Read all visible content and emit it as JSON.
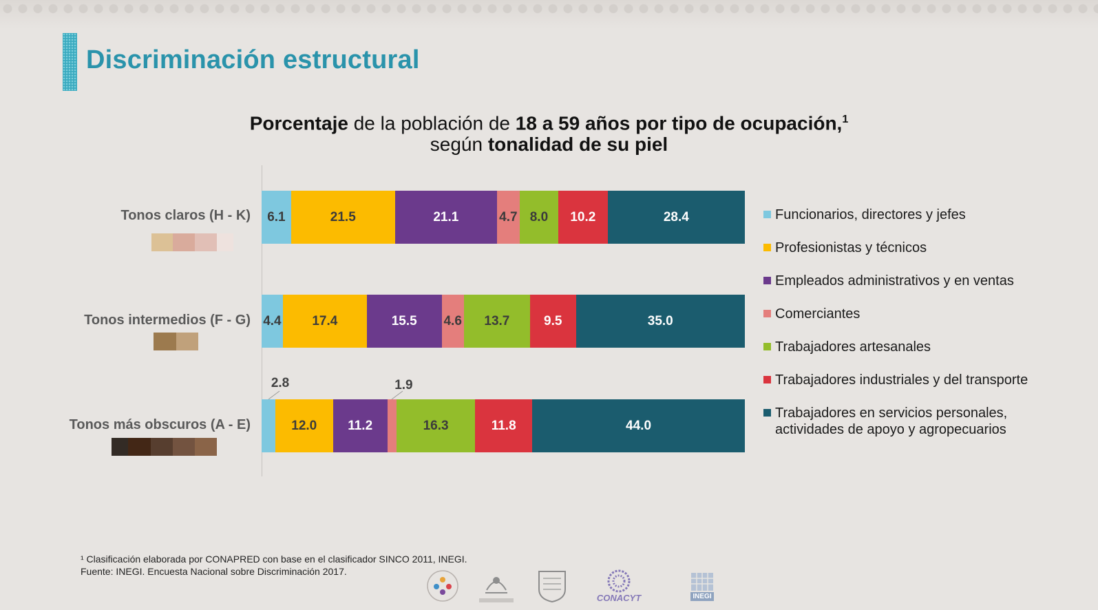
{
  "title": "Discriminación estructural",
  "subtitle": {
    "line1": [
      {
        "text": "Porcentaje",
        "bold": true
      },
      {
        "text": " de la población de ",
        "bold": false
      },
      {
        "text": "18 a 59 años por tipo de ocupación,",
        "bold": true
      }
    ],
    "line1_sup": "1",
    "line2": [
      {
        "text": "según ",
        "bold": false
      },
      {
        "text": "tonalidad de su piel",
        "bold": true
      }
    ]
  },
  "colors": {
    "funcionarios": "#7ec8df",
    "profesionistas": "#fcbb00",
    "empleados": "#6b3a8c",
    "comerciantes": "#e47e7c",
    "artesanales": "#93bd2b",
    "industriales": "#da343e",
    "servicios": "#1b5c6e"
  },
  "chart_data": {
    "type": "bar",
    "orientation": "horizontal",
    "stacked": true,
    "title": "Porcentaje de la población de 18 a 59 años por tipo de ocupación, según tonalidad de su piel",
    "categories": [
      "Tonos claros (H - K)",
      "Tonos intermedios (F - G)",
      "Tonos más obscuros (A - E)"
    ],
    "xlim": [
      0,
      100
    ],
    "series": [
      {
        "key": "funcionarios",
        "name": "Funcionarios, directores y jefes",
        "values": [
          6.1,
          4.4,
          2.8
        ]
      },
      {
        "key": "profesionistas",
        "name": "Profesionistas y técnicos",
        "values": [
          21.5,
          17.4,
          12.0
        ]
      },
      {
        "key": "empleados",
        "name": "Empleados administrativos y en ventas",
        "values": [
          21.1,
          15.5,
          11.2
        ]
      },
      {
        "key": "comerciantes",
        "name": "Comerciantes",
        "values": [
          4.7,
          4.6,
          1.9
        ]
      },
      {
        "key": "artesanales",
        "name": "Trabajadores artesanales",
        "values": [
          8.0,
          13.7,
          16.3
        ]
      },
      {
        "key": "industriales",
        "name": "Trabajadores industriales y del transporte",
        "values": [
          10.2,
          9.5,
          11.8
        ]
      },
      {
        "key": "servicios",
        "name": "Trabajadores en servicios personales, actividades de apoyo y agropecuarios",
        "values": [
          28.4,
          35.0,
          44.0
        ]
      }
    ],
    "legend": "right"
  },
  "legend_lines": {
    "servicios": [
      "Trabajadores en servicios personales,",
      "actividades de apoyo y agropecuarios"
    ]
  },
  "skin_swatches": [
    [
      "#dcc196",
      "#d9ab9c",
      "#e1bfb6",
      "#eee2de"
    ],
    [
      "#9c7a4e",
      "#c0a17b"
    ],
    [
      "#332b25",
      "#432716",
      "#573e2f",
      "#735340",
      "#8a6448"
    ]
  ],
  "footnotes": {
    "line1": "¹ Clasificación elaborada por CONAPRED con base en el clasificador SINCO 2011, INEGI.",
    "line2": "Fuente: INEGI. Encuesta Nacional sobre Discriminación 2017."
  },
  "logos": {
    "conacyt": "CONACYT",
    "inegi": "INEGI"
  }
}
